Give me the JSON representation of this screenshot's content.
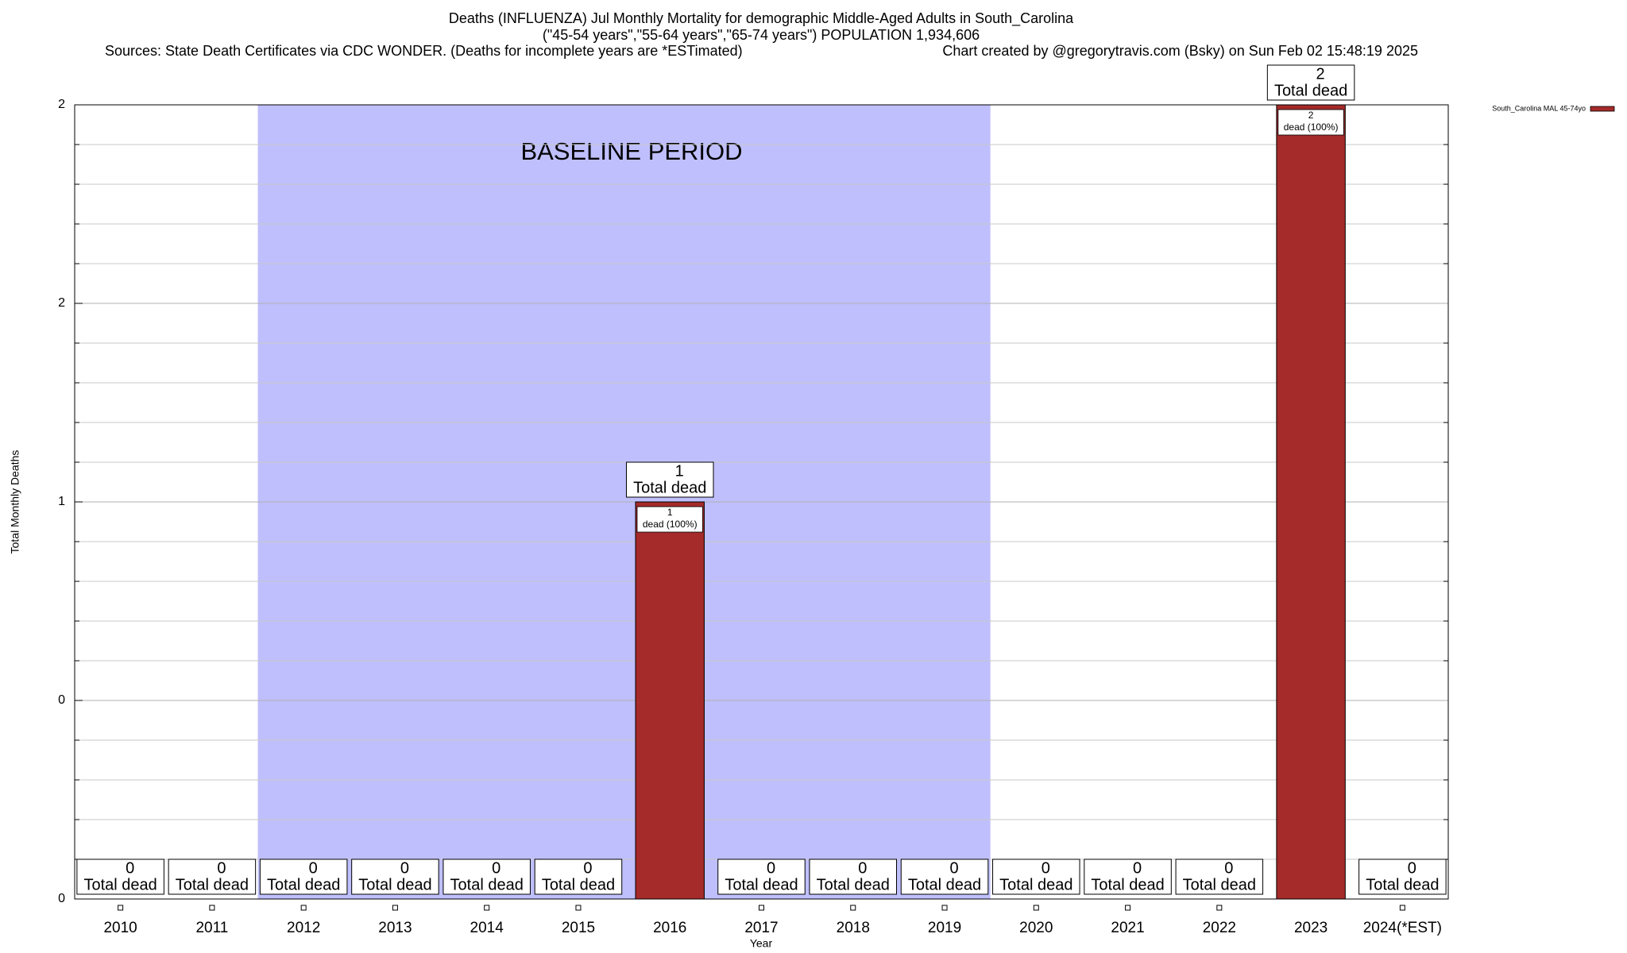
{
  "chart_data": {
    "type": "bar",
    "title": "Deaths (INFLUENZA) Jul Monthly Mortality for demographic Middle-Aged Adults in South_Carolina",
    "subtitle": "(\"45-54 years\",\"55-64 years\",\"65-74 years\") POPULATION 1,934,606",
    "sources": "Sources: State Death Certificates via CDC WONDER. (Deaths for incomplete years are *ESTimated)",
    "credit": "Chart created by @gregorytravis.com (Bsky) on Sun Feb 02 15:48:19 2025",
    "x_label": "Year",
    "y_label": "Total Monthly Deaths",
    "categories": [
      "2010",
      "2011",
      "2012",
      "2013",
      "2014",
      "2015",
      "2016",
      "2017",
      "2018",
      "2019",
      "2020",
      "2021",
      "2022",
      "2023",
      "2024(*EST)"
    ],
    "series": [
      {
        "name": "South_Carolina MAL 45-74yo",
        "color": "#a52a2a",
        "values": [
          0,
          0,
          0,
          0,
          0,
          0,
          1,
          0,
          0,
          0,
          0,
          0,
          0,
          2,
          0
        ]
      }
    ],
    "total_label": "Total dead",
    "share_label": "dead (100%)",
    "baseline": {
      "label": "BASELINE PERIOD",
      "start": "2012",
      "end": "2019",
      "color": "#bfbffd"
    },
    "ylim": [
      0,
      2
    ],
    "yticks": [
      0,
      {
        "value": 0.5,
        "label": "0"
      },
      1,
      {
        "value": 1.5,
        "label": "2"
      },
      2
    ],
    "minor_yticks": [
      0.1,
      0.2,
      0.3,
      0.4,
      0.6,
      0.7,
      0.8,
      0.9,
      1.1,
      1.2,
      1.3,
      1.4,
      1.6,
      1.7,
      1.8,
      1.9
    ],
    "grid": true,
    "legend": "top-right"
  }
}
